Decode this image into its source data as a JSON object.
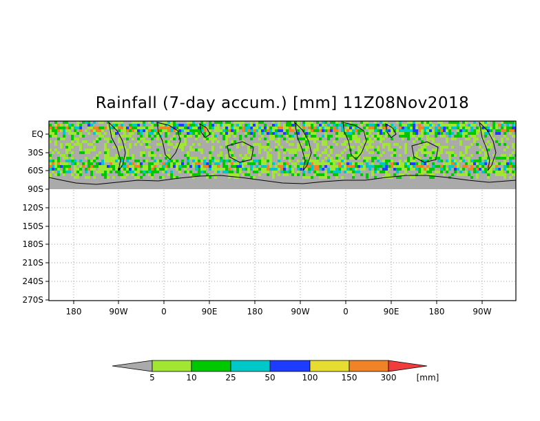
{
  "title": "Rainfall (7-day accum.) [mm] 11Z08Nov2018",
  "y_ticks": [
    "EQ",
    "30S",
    "60S",
    "90S",
    "120S",
    "150S",
    "180S",
    "210S",
    "240S",
    "270S"
  ],
  "x_ticks": [
    "180",
    "90W",
    "0",
    "90E",
    "180",
    "90W",
    "0",
    "90E",
    "180",
    "90W"
  ],
  "colorbar": {
    "unit": "[mm]",
    "levels": [
      "5",
      "10",
      "25",
      "50",
      "100",
      "150",
      "300"
    ],
    "colors": [
      "#aaaaaa",
      "#a0e632",
      "#00c800",
      "#00c8c8",
      "#1e3cff",
      "#e6dc32",
      "#f08228",
      "#f03c3c"
    ]
  },
  "colors": {
    "land": "#aaaaaa",
    "ocean_background": "#aaaaaa",
    "coastline": "#000000",
    "grid": "#999999"
  }
}
